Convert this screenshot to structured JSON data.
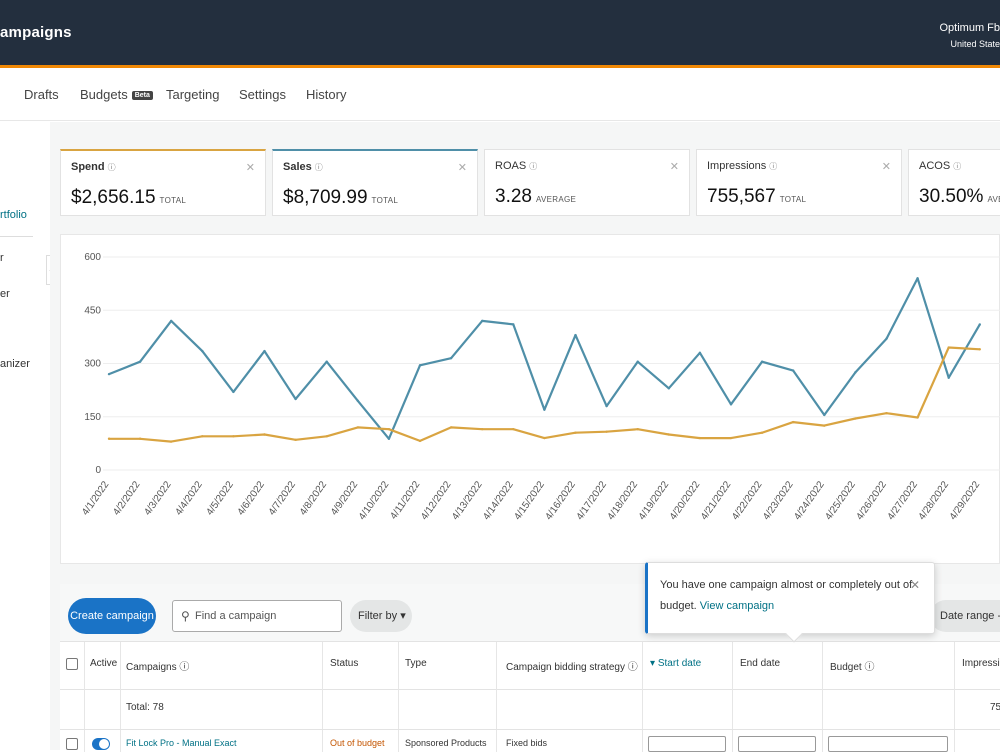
{
  "header": {
    "title": "ampaigns",
    "account_name": "Optimum Fb",
    "account_region": "United State"
  },
  "tabs": [
    {
      "label": "Drafts"
    },
    {
      "label": "Budgets",
      "badge": "Beta"
    },
    {
      "label": "Targeting"
    },
    {
      "label": "Settings"
    },
    {
      "label": "History"
    }
  ],
  "sidebar": {
    "items": [
      "rtfolio",
      "r",
      "er",
      "anizer"
    ],
    "collapse_icon": "chevron-left-icon"
  },
  "metrics": [
    {
      "label": "Spend",
      "value": "$2,656.15",
      "agg": "TOTAL",
      "color": "#d9a441"
    },
    {
      "label": "Sales",
      "value": "$8,709.99",
      "agg": "TOTAL",
      "color": "#4f8fa8"
    },
    {
      "label": "ROAS",
      "value": "3.28",
      "agg": "AVERAGE"
    },
    {
      "label": "Impressions",
      "value": "755,567",
      "agg": "TOTAL"
    },
    {
      "label": "ACOS",
      "value": "30.50%",
      "agg": "AVERA"
    }
  ],
  "chart_data": {
    "type": "line",
    "ylim": [
      0,
      600
    ],
    "y_ticks": [
      "600",
      "450",
      "300",
      "150",
      "0"
    ],
    "x": [
      "4/1/2022",
      "4/2/2022",
      "4/3/2022",
      "4/4/2022",
      "4/5/2022",
      "4/6/2022",
      "4/7/2022",
      "4/8/2022",
      "4/9/2022",
      "4/10/2022",
      "4/11/2022",
      "4/12/2022",
      "4/13/2022",
      "4/14/2022",
      "4/15/2022",
      "4/16/2022",
      "4/17/2022",
      "4/18/2022",
      "4/19/2022",
      "4/20/2022",
      "4/21/2022",
      "4/22/2022",
      "4/23/2022",
      "4/24/2022",
      "4/25/2022",
      "4/26/2022",
      "4/27/2022",
      "4/28/2022",
      "4/29/2022"
    ],
    "series": [
      {
        "name": "Sales",
        "color": "#4f8fa8",
        "values": [
          270,
          305,
          420,
          335,
          220,
          335,
          200,
          305,
          195,
          88,
          295,
          315,
          420,
          410,
          170,
          380,
          180,
          305,
          230,
          330,
          185,
          305,
          280,
          155,
          275,
          370,
          540,
          260,
          410
        ]
      },
      {
        "name": "Spend",
        "color": "#d9a441",
        "values": [
          88,
          88,
          80,
          95,
          95,
          100,
          85,
          95,
          120,
          115,
          82,
          120,
          115,
          115,
          90,
          105,
          108,
          115,
          100,
          90,
          90,
          105,
          135,
          125,
          145,
          160,
          148,
          345,
          340
        ]
      }
    ]
  },
  "toolbar": {
    "create_label": "Create campaign",
    "search_placeholder": "Find a campaign",
    "filter_label": "Filter by",
    "daterange_label": "Date range -"
  },
  "table": {
    "headers": [
      "Active",
      "Campaigns",
      "Status",
      "Type",
      "Campaign bidding strategy",
      "Start date",
      "End date",
      "Budget",
      "Impressio"
    ],
    "total_label": "Total: 78",
    "total_impressions": "75",
    "first_row": {
      "name": "Fit Lock Pro - Manual Exact",
      "status": "Out of budget",
      "type": "Sponsored Products",
      "strategy": "Fixed bids"
    }
  },
  "popup": {
    "message": "You have one campaign almost or completely out of budget.",
    "link": "View campaign"
  }
}
